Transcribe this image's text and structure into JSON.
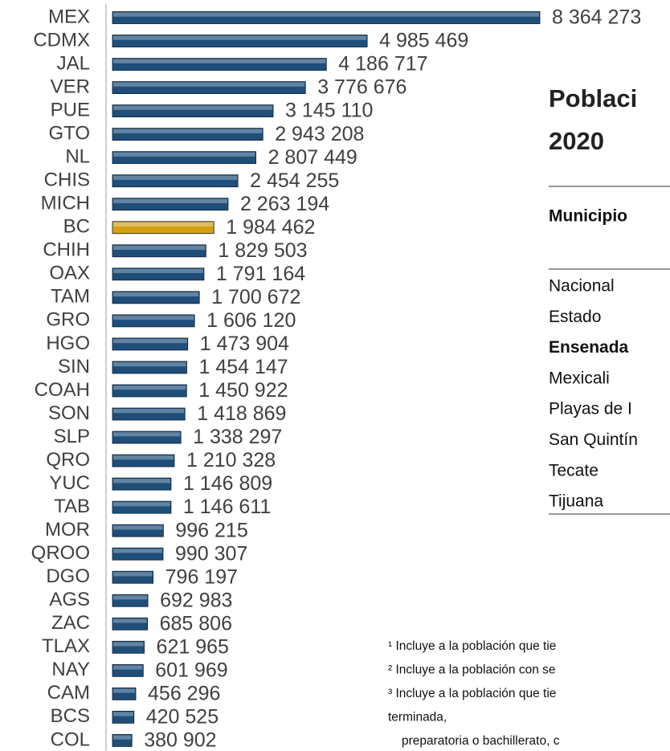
{
  "chart_data": {
    "type": "bar",
    "orientation": "horizontal",
    "categories": [
      "MEX",
      "CDMX",
      "JAL",
      "VER",
      "PUE",
      "GTO",
      "NL",
      "CHIS",
      "MICH",
      "BC",
      "CHIH",
      "OAX",
      "TAM",
      "GRO",
      "HGO",
      "SIN",
      "COAH",
      "SON",
      "SLP",
      "QRO",
      "YUC",
      "TAB",
      "MOR",
      "QROO",
      "DGO",
      "AGS",
      "ZAC",
      "TLAX",
      "NAY",
      "CAM",
      "BCS",
      "COL"
    ],
    "values": [
      8364273,
      4985469,
      4186717,
      3776676,
      3145110,
      2943208,
      2807449,
      2454255,
      2263194,
      1984462,
      1829503,
      1791164,
      1700672,
      1606120,
      1473904,
      1454147,
      1450922,
      1418869,
      1338297,
      1210328,
      1146809,
      1146611,
      996215,
      990307,
      796197,
      692983,
      685806,
      621965,
      601969,
      456296,
      420525,
      380902
    ],
    "value_labels": [
      "8 364 273",
      "4 985 469",
      "4 186 717",
      "3 776 676",
      "3 145 110",
      "2 943 208",
      "2 807 449",
      "2 454 255",
      "2 263 194",
      "1 984 462",
      "1 829 503",
      "1 791 164",
      "1 700 672",
      "1 606 120",
      "1 473 904",
      "1 454 147",
      "1 450 922",
      "1 418 869",
      "1 338 297",
      "1 210 328",
      "1 146 809",
      "1 146 611",
      "996 215",
      "990 307",
      "796 197",
      "692 983",
      "685 806",
      "621 965",
      "601 969",
      "456 296",
      "420 525",
      "380 902"
    ],
    "colors": [
      "#1f4e79",
      "#1f4e79",
      "#1f4e79",
      "#1f4e79",
      "#1f4e79",
      "#1f4e79",
      "#1f4e79",
      "#1f4e79",
      "#1f4e79",
      "#d4a017",
      "#1f4e79",
      "#1f4e79",
      "#1f4e79",
      "#1f4e79",
      "#1f4e79",
      "#1f4e79",
      "#1f4e79",
      "#1f4e79",
      "#1f4e79",
      "#1f4e79",
      "#1f4e79",
      "#1f4e79",
      "#1f4e79",
      "#1f4e79",
      "#1f4e79",
      "#1f4e79",
      "#1f4e79",
      "#1f4e79",
      "#1f4e79",
      "#1f4e79",
      "#1f4e79",
      "#1f4e79"
    ]
  },
  "panel": {
    "title": [
      "Poblaci",
      "2020"
    ],
    "table": {
      "header": "Municipio",
      "rows": [
        "Nacional",
        "Estado",
        "Ensenada",
        "Mexicali",
        "Playas de I",
        "San Quintín",
        "Tecate",
        "Tijuana"
      ]
    },
    "footnotes": [
      "¹ Incluye a la población que tie",
      "² Incluye a la población con se",
      "³ Incluye a la población que tie",
      "terminada,",
      "preparatoria o bachillerato, c"
    ]
  }
}
